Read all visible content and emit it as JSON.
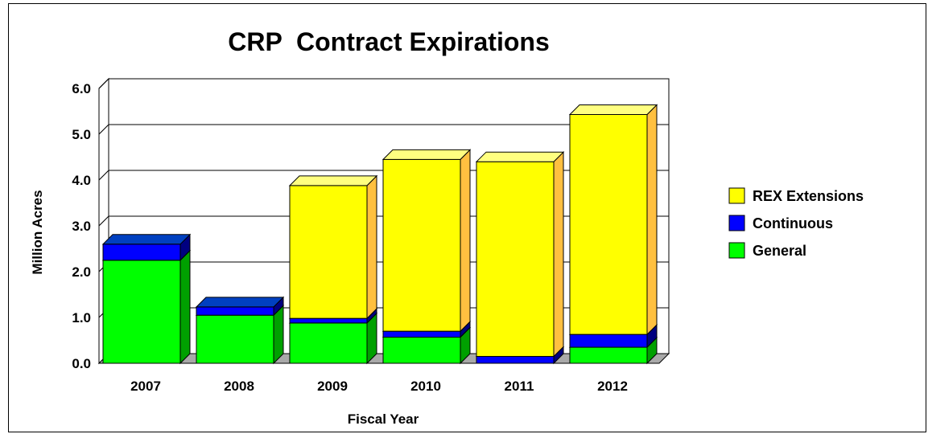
{
  "chart_data": {
    "type": "bar",
    "stacked": true,
    "three_d": true,
    "title": "CRP  Contract Expirations",
    "xlabel": "Fiscal Year",
    "ylabel": "Million Acres",
    "categories": [
      "2007",
      "2008",
      "2009",
      "2010",
      "2011",
      "2012"
    ],
    "ylim": [
      0,
      6
    ],
    "yticks": [
      "0.0",
      "1.0",
      "2.0",
      "3.0",
      "4.0",
      "5.0",
      "6.0"
    ],
    "grid": true,
    "legend_position": "right",
    "series": [
      {
        "name": "General",
        "color": "#00ff00",
        "values": [
          2.25,
          1.05,
          0.88,
          0.57,
          0.0,
          0.35
        ]
      },
      {
        "name": "Continuous",
        "color": "#0000ff",
        "values": [
          0.35,
          0.18,
          0.1,
          0.13,
          0.15,
          0.28
        ]
      },
      {
        "name": "REX Extensions",
        "color": "#ffff00",
        "values": [
          0.0,
          0.0,
          2.9,
          3.75,
          4.25,
          4.8
        ]
      }
    ],
    "legend_order": [
      "REX Extensions",
      "Continuous",
      "General"
    ]
  }
}
